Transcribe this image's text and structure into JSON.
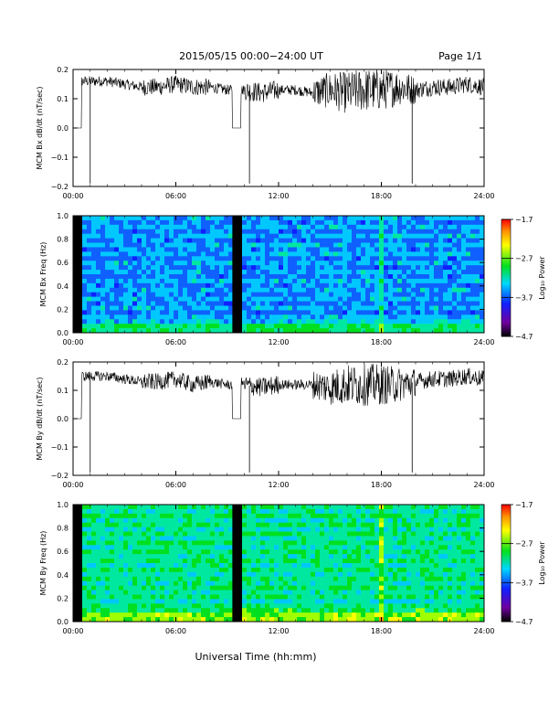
{
  "header": {
    "title": "2015/05/15  00:00−24:00 UT",
    "page": "Page 1/1"
  },
  "xlabel": "Universal Time (hh:mm)",
  "chart_data": [
    {
      "type": "line",
      "ylabel": "MCM Bx dB/dt (nT/sec)",
      "xlim": [
        0,
        24
      ],
      "ylim": [
        -0.2,
        0.2
      ],
      "xticks": [
        "00:00",
        "06:00",
        "12:00",
        "18:00",
        "24:00"
      ],
      "yticks": [
        "0.2",
        "0.1",
        "0.0",
        "−0.1",
        "−0.2"
      ],
      "series": [
        {
          "x": [
            0,
            0.5,
            0.5,
            1,
            2,
            3,
            4,
            5,
            6,
            7,
            8,
            9,
            9.3,
            9.3,
            9.8,
            9.8,
            10,
            11,
            12,
            13,
            14,
            15,
            16,
            17,
            18,
            19,
            20,
            21,
            22,
            23,
            24
          ],
          "y": [
            0.0,
            0.0,
            0.16,
            0.16,
            0.16,
            0.15,
            0.14,
            0.14,
            0.15,
            0.14,
            0.14,
            0.13,
            0.13,
            0.0,
            0.0,
            0.13,
            0.13,
            0.12,
            0.13,
            0.13,
            0.12,
            0.13,
            0.12,
            0.13,
            0.13,
            0.14,
            0.13,
            0.14,
            0.14,
            0.15,
            0.14
          ]
        }
      ]
    },
    {
      "type": "heatmap",
      "ylabel": "MCM Bx Freq (Hz)",
      "xlim": [
        0,
        24
      ],
      "ylim": [
        0.0,
        1.0
      ],
      "xticks": [
        "00:00",
        "06:00",
        "12:00",
        "18:00",
        "24:00"
      ],
      "yticks": [
        "1.0",
        "0.8",
        "0.6",
        "0.4",
        "0.2",
        "0.0"
      ],
      "colorbar": {
        "label": "Log₁₀ Power",
        "ticks": [
          "−1.7",
          "−2.7",
          "−3.7",
          "−4.7"
        ]
      }
    },
    {
      "type": "line",
      "ylabel": "MCM By dB/dt (nT/sec)",
      "xlim": [
        0,
        24
      ],
      "ylim": [
        -0.2,
        0.2
      ],
      "xticks": [
        "00:00",
        "06:00",
        "12:00",
        "18:00",
        "24:00"
      ],
      "yticks": [
        "0.2",
        "0.1",
        "0.0",
        "−0.1",
        "−0.2"
      ],
      "series": [
        {
          "x": [
            0,
            0.5,
            0.5,
            1,
            2,
            3,
            4,
            5,
            6,
            7,
            8,
            9,
            9.3,
            9.3,
            9.8,
            9.8,
            10,
            11,
            12,
            13,
            14,
            15,
            16,
            17,
            18,
            19,
            20,
            21,
            22,
            23,
            24
          ],
          "y": [
            0.0,
            0.0,
            0.15,
            0.15,
            0.15,
            0.14,
            0.13,
            0.13,
            0.14,
            0.12,
            0.13,
            0.12,
            0.12,
            0.0,
            0.0,
            0.13,
            0.12,
            0.11,
            0.12,
            0.12,
            0.12,
            0.11,
            0.12,
            0.12,
            0.12,
            0.12,
            0.13,
            0.14,
            0.14,
            0.15,
            0.14
          ]
        }
      ]
    },
    {
      "type": "heatmap",
      "ylabel": "MCM By Freq (Hz)",
      "xlim": [
        0,
        24
      ],
      "ylim": [
        0.0,
        1.0
      ],
      "xticks": [
        "00:00",
        "06:00",
        "12:00",
        "18:00",
        "24:00"
      ],
      "yticks": [
        "1.0",
        "0.8",
        "0.6",
        "0.4",
        "0.2",
        "0.0"
      ],
      "colorbar": {
        "label": "Log₁₀ Power",
        "ticks": [
          "−1.7",
          "−2.7",
          "−3.7",
          "−4.7"
        ]
      }
    }
  ]
}
